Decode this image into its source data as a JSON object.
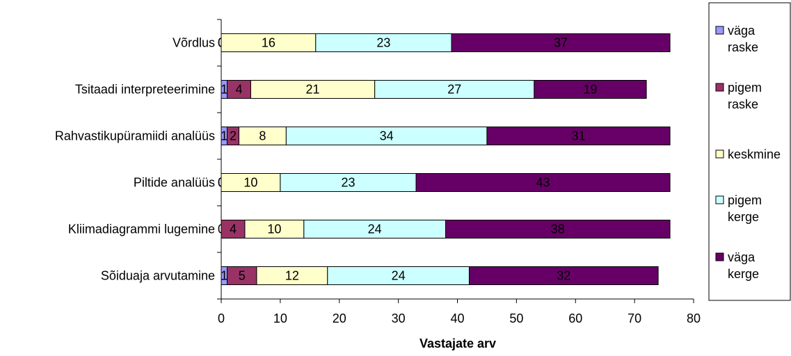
{
  "chart_data": {
    "type": "bar",
    "orientation": "horizontal",
    "stacked": true,
    "categories": [
      "Võrdlus",
      "Tsitaadi interpreteerimine",
      "Rahvastikupüramiidi analüüs",
      "Piltide analüüs",
      "Kliimadiagrammi lugemine",
      "Sõiduaja arvutamine"
    ],
    "series": [
      {
        "name": "väga raske",
        "legend_lines": [
          "väga",
          "raske"
        ],
        "color": "#9999ff",
        "values": [
          0,
          1,
          1,
          0,
          0,
          1
        ]
      },
      {
        "name": "pigem raske",
        "legend_lines": [
          "pigem",
          "raske"
        ],
        "color": "#993366",
        "values": [
          0,
          4,
          2,
          0,
          4,
          5
        ]
      },
      {
        "name": "keskmine",
        "legend_lines": [
          "keskmine"
        ],
        "color": "#ffffcc",
        "values": [
          16,
          21,
          8,
          10,
          10,
          12
        ]
      },
      {
        "name": "pigem kerge",
        "legend_lines": [
          "pigem",
          "kerge"
        ],
        "color": "#ccffff",
        "values": [
          23,
          27,
          34,
          23,
          24,
          24
        ]
      },
      {
        "name": "väga kerge",
        "legend_lines": [
          "väga",
          "kerge"
        ],
        "color": "#660066",
        "values": [
          37,
          19,
          31,
          43,
          38,
          32
        ]
      }
    ],
    "xlabel": "Vastajate arv",
    "ylabel": "",
    "xlim": [
      0,
      80
    ],
    "xticks": [
      0,
      10,
      20,
      30,
      40,
      50,
      60,
      70,
      80
    ],
    "grid": false,
    "legend_position": "right"
  }
}
